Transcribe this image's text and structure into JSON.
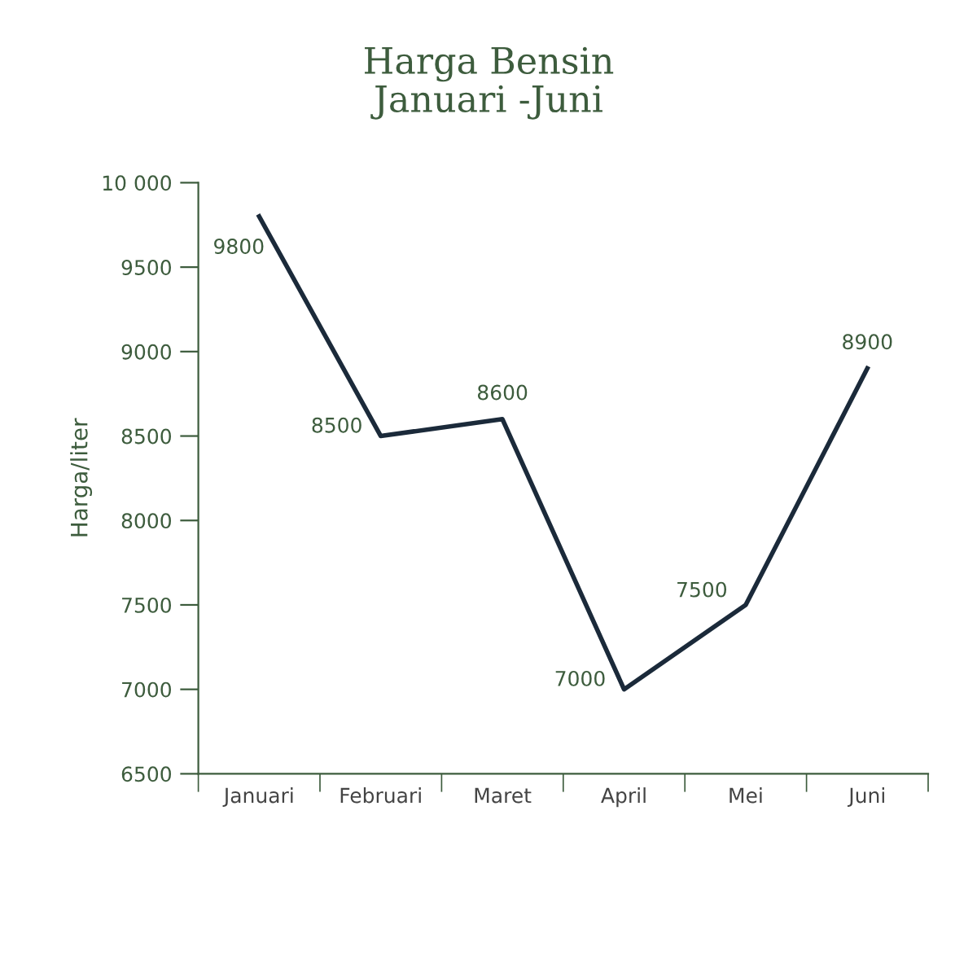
{
  "chart_data": {
    "type": "line",
    "title": "Harga Bensin\nJanuari -Juni",
    "ylabel": "Harga/liter",
    "categories": [
      "Januari",
      "Februari",
      "Maret",
      "April",
      "Mei",
      "Juni"
    ],
    "series": [
      {
        "color": "#1b2a3a",
        "values": [
          9800,
          8500,
          8600,
          7000,
          7500,
          8900
        ]
      }
    ],
    "ylim": [
      6500,
      10000
    ],
    "yticks": [
      6500,
      7000,
      7500,
      8000,
      8500,
      9000,
      9500,
      {
        "value": 10000,
        "label": "10 000"
      }
    ],
    "data_labels": true,
    "grid": false,
    "marker": "none",
    "line_style": "solid"
  }
}
